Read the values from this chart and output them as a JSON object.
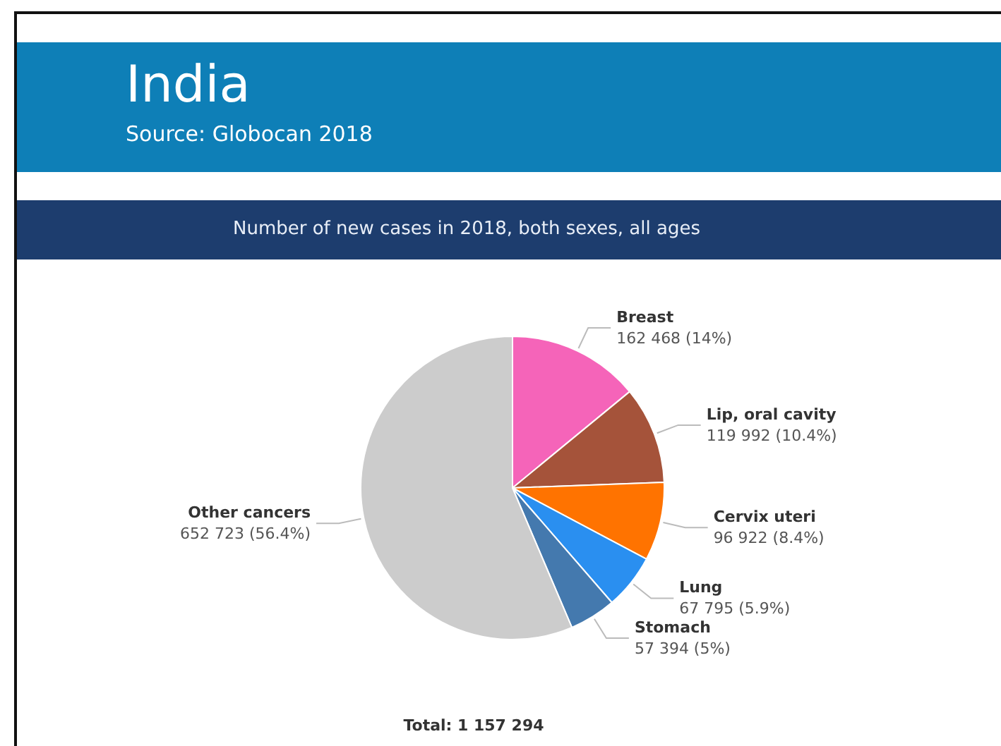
{
  "chart_data": {
    "type": "pie",
    "title": "India",
    "subtitle": "Number of new cases in 2018, both sexes, all ages",
    "annotations": [
      "Source: Globocan 2018",
      "Total: 1 157 294"
    ],
    "categories": [
      "Breast",
      "Lip, oral cavity",
      "Cervix uteri",
      "Lung",
      "Stomach",
      "Other cancers"
    ],
    "values": [
      162468,
      119992,
      96922,
      67795,
      57394,
      652723
    ],
    "value_labels": [
      "162 468 (14%)",
      "119 992 (10.4%)",
      "96 922 (8.4%)",
      "67 795 (5.9%)",
      "57 394 (5%)",
      "652 723 (56.4%)"
    ],
    "colors": [
      "#f564b9",
      "#a5533a",
      "#ff7300",
      "#2a8ff0",
      "#4479ae",
      "#cccccc"
    ],
    "legend": false
  }
}
